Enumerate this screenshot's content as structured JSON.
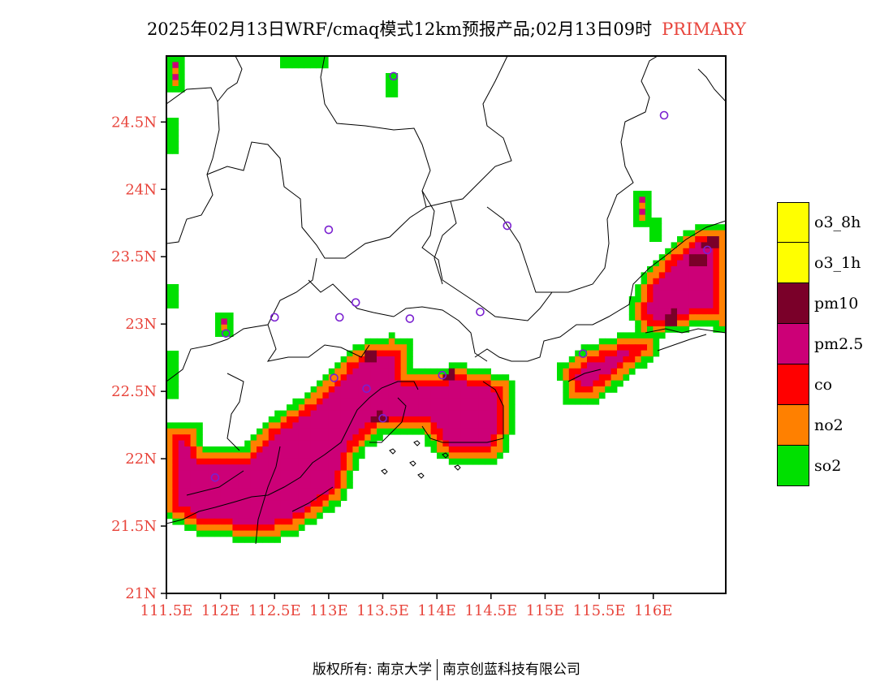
{
  "title": {
    "text": "2025年02月13日WRF/cmaq模式12km预报产品;02月13日09时",
    "tag": "PRIMARY",
    "tag_color": "#e8453c"
  },
  "axes": {
    "lat_labels": [
      "24.5N",
      "24N",
      "23.5N",
      "23N",
      "22.5N",
      "22N",
      "21.5N",
      "21N"
    ],
    "lat_values": [
      24.5,
      24,
      23.5,
      23,
      22.5,
      22,
      21.5,
      21
    ],
    "lon_labels": [
      "111.5E",
      "112E",
      "112.5E",
      "113E",
      "113.5E",
      "114E",
      "114.5E",
      "115E",
      "115.5E",
      "116E"
    ],
    "lon_values": [
      111.5,
      112,
      112.5,
      113,
      113.5,
      114,
      114.5,
      115,
      115.5,
      116
    ],
    "lon_range": [
      111.5,
      116.67
    ],
    "lat_range": [
      21,
      24.99
    ],
    "label_color": "#e8453c"
  },
  "legend": [
    {
      "label": "o3_8h",
      "color": "#ffff00"
    },
    {
      "label": "o3_1h",
      "color": "#ffff00"
    },
    {
      "label": "pm10",
      "color": "#7a0029"
    },
    {
      "label": "pm2.5",
      "color": "#cc0077"
    },
    {
      "label": "co",
      "color": "#ff0000"
    },
    {
      "label": "no2",
      "color": "#ff8000"
    },
    {
      "label": "so2",
      "color": "#00e000"
    }
  ],
  "stations": [
    [
      113.6,
      24.84
    ],
    [
      116.1,
      24.55
    ],
    [
      113.0,
      23.7
    ],
    [
      114.65,
      23.73
    ],
    [
      112.5,
      23.05
    ],
    [
      112.05,
      22.93
    ],
    [
      113.1,
      23.05
    ],
    [
      113.25,
      23.16
    ],
    [
      113.75,
      23.04
    ],
    [
      114.4,
      23.09
    ],
    [
      113.05,
      22.6
    ],
    [
      113.35,
      22.52
    ],
    [
      113.5,
      22.3
    ],
    [
      114.05,
      22.62
    ],
    [
      111.95,
      21.86
    ],
    [
      115.35,
      22.78
    ],
    [
      116.5,
      23.55
    ]
  ],
  "footer": {
    "left": "版权所有: 南京大学",
    "right": "南京创蓝科技有限公司"
  }
}
